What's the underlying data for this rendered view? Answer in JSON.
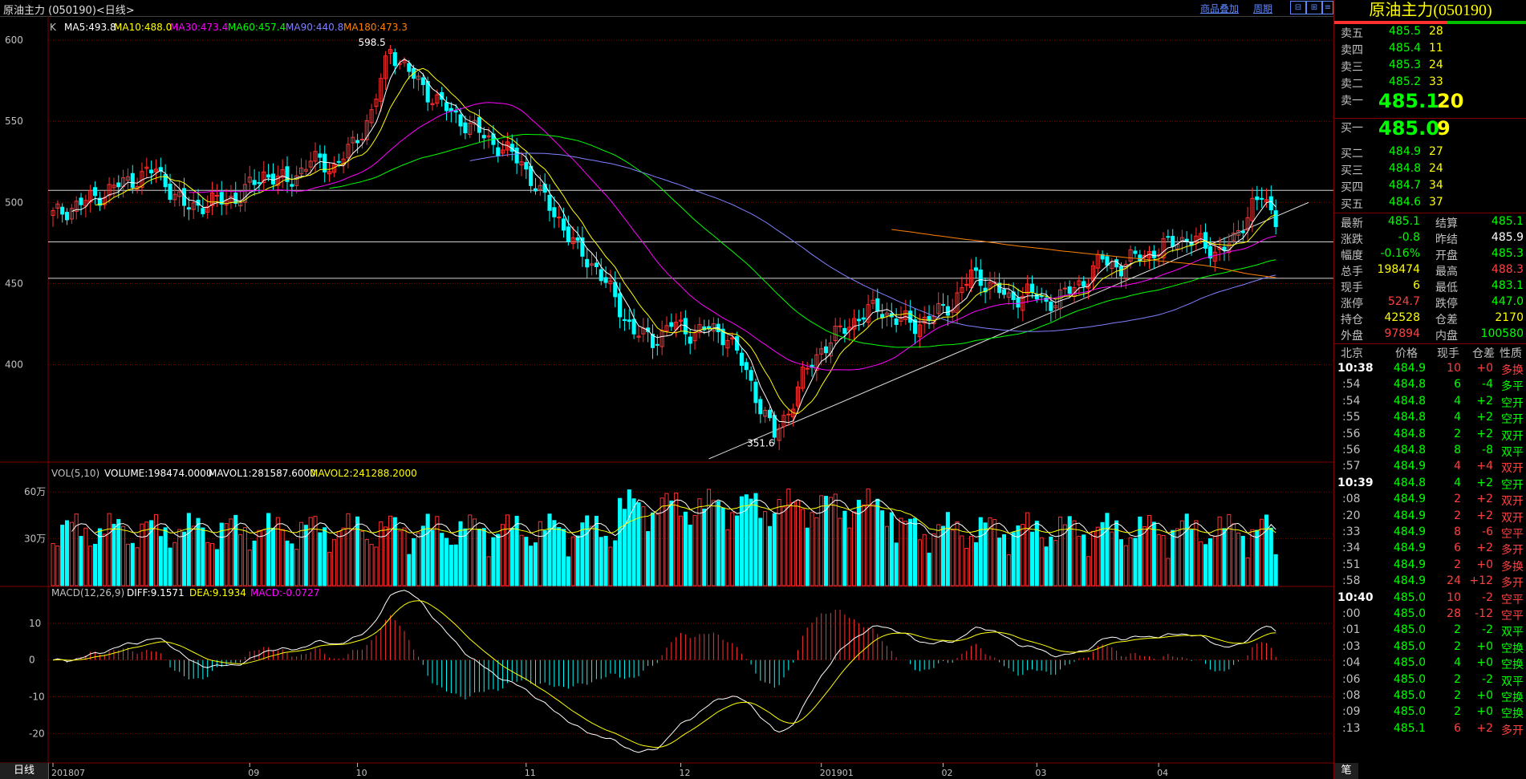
{
  "header": {
    "title": "原油主力 (050190)<日线>",
    "link_overlay": "商品叠加",
    "link_period": "周期"
  },
  "panels": {
    "price_legend": {
      "prefix": "K",
      "ma5": "MA5:493.8",
      "ma10": "MA10:488.0",
      "ma30": "MA30:473.4",
      "ma60": "MA60:457.4",
      "ma90": "MA90:440.8",
      "ma180": "MA180:473.3"
    },
    "vol_legend": {
      "prefix": "VOL(5,10)",
      "volume": "VOLUME:198474.0000",
      "mavol1": "MAVOL1:281587.6000",
      "mavol2": "MAVOL2:241288.2000"
    },
    "macd_legend": {
      "prefix": "MACD(12,26,9)",
      "diff": "DIFF:9.1571",
      "dea": "DEA:9.1934",
      "macd": "MACD:-0.0727"
    },
    "bottom_tab": "日线"
  },
  "chart_data": {
    "type": "candlestick",
    "price_axis": {
      "ticks": [
        600,
        550,
        500,
        450,
        400
      ],
      "ylim": [
        340,
        605
      ]
    },
    "vol_axis": {
      "ticks": [
        "60万",
        "30万"
      ],
      "tick_values": [
        600000,
        300000
      ],
      "ylim": [
        0,
        740000
      ]
    },
    "macd_axis": {
      "ticks": [
        10,
        0,
        -10,
        -20
      ],
      "ylim": [
        -28,
        20
      ]
    },
    "x_ticks": [
      {
        "label": "201807",
        "i": 0
      },
      {
        "label": "09",
        "i": 42
      },
      {
        "label": "10",
        "i": 65
      },
      {
        "label": "11",
        "i": 101
      },
      {
        "label": "12",
        "i": 134
      },
      {
        "label": "201901",
        "i": 164
      },
      {
        "label": "02",
        "i": 190
      },
      {
        "label": "03",
        "i": 210
      },
      {
        "label": "04",
        "i": 236
      }
    ],
    "annotations": [
      {
        "text": "598.5",
        "i": 72,
        "value": 598.5
      },
      {
        "text": "351.6",
        "i": 155,
        "value": 351.6
      }
    ],
    "horizontal_lines": [
      507.5,
      475.7,
      453.3
    ],
    "trendline": [
      [
        140,
        342
      ],
      [
        268,
        500
      ]
    ],
    "key_points": [
      {
        "i": 0,
        "close": 492
      },
      {
        "i": 8,
        "close": 502
      },
      {
        "i": 15,
        "close": 512
      },
      {
        "i": 22,
        "close": 520
      },
      {
        "i": 28,
        "close": 497
      },
      {
        "i": 34,
        "close": 500
      },
      {
        "i": 40,
        "close": 504
      },
      {
        "i": 45,
        "close": 518
      },
      {
        "i": 50,
        "close": 512
      },
      {
        "i": 55,
        "close": 526
      },
      {
        "i": 60,
        "close": 522
      },
      {
        "i": 64,
        "close": 535
      },
      {
        "i": 68,
        "close": 555
      },
      {
        "i": 72,
        "close": 595
      },
      {
        "i": 76,
        "close": 580
      },
      {
        "i": 80,
        "close": 568
      },
      {
        "i": 85,
        "close": 555
      },
      {
        "i": 90,
        "close": 545
      },
      {
        "i": 95,
        "close": 535
      },
      {
        "i": 100,
        "close": 525
      },
      {
        "i": 104,
        "close": 505
      },
      {
        "i": 108,
        "close": 490
      },
      {
        "i": 112,
        "close": 470
      },
      {
        "i": 116,
        "close": 460
      },
      {
        "i": 120,
        "close": 440
      },
      {
        "i": 124,
        "close": 420
      },
      {
        "i": 128,
        "close": 415
      },
      {
        "i": 132,
        "close": 425
      },
      {
        "i": 136,
        "close": 420
      },
      {
        "i": 140,
        "close": 422
      },
      {
        "i": 144,
        "close": 418
      },
      {
        "i": 148,
        "close": 395
      },
      {
        "i": 151,
        "close": 375
      },
      {
        "i": 154,
        "close": 356
      },
      {
        "i": 157,
        "close": 372
      },
      {
        "i": 160,
        "close": 392
      },
      {
        "i": 164,
        "close": 410
      },
      {
        "i": 168,
        "close": 420
      },
      {
        "i": 172,
        "close": 430
      },
      {
        "i": 176,
        "close": 435
      },
      {
        "i": 180,
        "close": 428
      },
      {
        "i": 184,
        "close": 425
      },
      {
        "i": 188,
        "close": 430
      },
      {
        "i": 192,
        "close": 438
      },
      {
        "i": 196,
        "close": 455
      },
      {
        "i": 200,
        "close": 450
      },
      {
        "i": 204,
        "close": 440
      },
      {
        "i": 208,
        "close": 445
      },
      {
        "i": 212,
        "close": 438
      },
      {
        "i": 216,
        "close": 443
      },
      {
        "i": 220,
        "close": 452
      },
      {
        "i": 224,
        "close": 465
      },
      {
        "i": 228,
        "close": 460
      },
      {
        "i": 232,
        "close": 468
      },
      {
        "i": 236,
        "close": 470
      },
      {
        "i": 240,
        "close": 478
      },
      {
        "i": 244,
        "close": 476
      },
      {
        "i": 248,
        "close": 470
      },
      {
        "i": 252,
        "close": 475
      },
      {
        "i": 256,
        "close": 500
      },
      {
        "i": 258,
        "close": 503
      },
      {
        "i": 260,
        "close": 492
      },
      {
        "i": 261,
        "close": 485.1
      }
    ],
    "ma_series": [
      {
        "name": "MA5",
        "color": "#ffffff",
        "values": []
      },
      {
        "name": "MA10",
        "color": "#ffff00",
        "values": []
      },
      {
        "name": "MA30",
        "color": "#ff00ff",
        "values": []
      },
      {
        "name": "MA60",
        "color": "#00ff00",
        "values": []
      },
      {
        "name": "MA90",
        "color": "#8080ff",
        "values": []
      },
      {
        "name": "MA180",
        "color": "#ff8000",
        "values": []
      }
    ]
  },
  "quote": {
    "title": "原油主力(050190)",
    "asks": [
      {
        "label": "卖五",
        "price": "485.5",
        "vol": "28"
      },
      {
        "label": "卖四",
        "price": "485.4",
        "vol": "11"
      },
      {
        "label": "卖三",
        "price": "485.3",
        "vol": "24"
      },
      {
        "label": "卖二",
        "price": "485.2",
        "vol": "33"
      },
      {
        "label": "卖一",
        "price": "485.1",
        "vol": "20"
      }
    ],
    "bids": [
      {
        "label": "买一",
        "price": "485.0",
        "vol": "9"
      },
      {
        "label": "买二",
        "price": "484.9",
        "vol": "27"
      },
      {
        "label": "买三",
        "price": "484.8",
        "vol": "24"
      },
      {
        "label": "买四",
        "price": "484.7",
        "vol": "34"
      },
      {
        "label": "买五",
        "price": "484.6",
        "vol": "37"
      }
    ],
    "stats": [
      {
        "l1": "最新",
        "v1": "485.1",
        "c1": "g",
        "l2": "结算",
        "v2": "485.1",
        "c2": "g"
      },
      {
        "l1": "涨跌",
        "v1": "-0.8",
        "c1": "g",
        "l2": "昨结",
        "v2": "485.9",
        "c2": "w"
      },
      {
        "l1": "幅度",
        "v1": "-0.16%",
        "c1": "g",
        "l2": "开盘",
        "v2": "485.3",
        "c2": "g"
      },
      {
        "l1": "总手",
        "v1": "198474",
        "c1": "y",
        "l2": "最高",
        "v2": "488.3",
        "c2": "r"
      },
      {
        "l1": "现手",
        "v1": "6",
        "c1": "y",
        "l2": "最低",
        "v2": "483.1",
        "c2": "g"
      },
      {
        "l1": "涨停",
        "v1": "524.7",
        "c1": "r",
        "l2": "跌停",
        "v2": "447.0",
        "c2": "g"
      },
      {
        "l1": "持仓",
        "v1": "42528",
        "c1": "y",
        "l2": "仓差",
        "v2": "2170",
        "c2": "y"
      },
      {
        "l1": "外盘",
        "v1": "97894",
        "c1": "r",
        "l2": "内盘",
        "v2": "100580",
        "c2": "g"
      }
    ],
    "ticks_header": {
      "time": "北京",
      "price": "价格",
      "vol": "现手",
      "oi": "仓差",
      "nature": "性质"
    },
    "ticks": [
      {
        "time": "10:38",
        "price": "484.9",
        "vol": "10",
        "oi": "+0",
        "nature": "多换",
        "bold": true,
        "pc": "g",
        "vc": "r",
        "nc": "r"
      },
      {
        "time": ":54",
        "price": "484.8",
        "vol": "6",
        "oi": "-4",
        "nature": "多平",
        "pc": "g",
        "vc": "g",
        "nc": "g"
      },
      {
        "time": ":54",
        "price": "484.8",
        "vol": "4",
        "oi": "+2",
        "nature": "空开",
        "pc": "g",
        "vc": "g",
        "nc": "g"
      },
      {
        "time": ":55",
        "price": "484.8",
        "vol": "4",
        "oi": "+2",
        "nature": "空开",
        "pc": "g",
        "vc": "g",
        "nc": "g"
      },
      {
        "time": ":56",
        "price": "484.8",
        "vol": "2",
        "oi": "+2",
        "nature": "双开",
        "pc": "g",
        "vc": "g",
        "nc": "g"
      },
      {
        "time": ":56",
        "price": "484.8",
        "vol": "8",
        "oi": "-8",
        "nature": "双平",
        "pc": "g",
        "vc": "g",
        "nc": "g"
      },
      {
        "time": ":57",
        "price": "484.9",
        "vol": "4",
        "oi": "+4",
        "nature": "双开",
        "pc": "g",
        "vc": "r",
        "nc": "r"
      },
      {
        "time": "10:39",
        "price": "484.8",
        "vol": "4",
        "oi": "+2",
        "nature": "空开",
        "bold": true,
        "pc": "g",
        "vc": "g",
        "nc": "g"
      },
      {
        "time": ":08",
        "price": "484.9",
        "vol": "2",
        "oi": "+2",
        "nature": "双开",
        "pc": "g",
        "vc": "r",
        "nc": "r"
      },
      {
        "time": ":20",
        "price": "484.9",
        "vol": "2",
        "oi": "+2",
        "nature": "双开",
        "pc": "g",
        "vc": "r",
        "nc": "r"
      },
      {
        "time": ":33",
        "price": "484.9",
        "vol": "8",
        "oi": "-6",
        "nature": "空平",
        "pc": "g",
        "vc": "r",
        "nc": "r"
      },
      {
        "time": ":34",
        "price": "484.9",
        "vol": "6",
        "oi": "+2",
        "nature": "多开",
        "pc": "g",
        "vc": "r",
        "nc": "r"
      },
      {
        "time": ":51",
        "price": "484.9",
        "vol": "2",
        "oi": "+0",
        "nature": "多换",
        "pc": "g",
        "vc": "r",
        "nc": "r"
      },
      {
        "time": ":58",
        "price": "484.9",
        "vol": "24",
        "oi": "+12",
        "nature": "多开",
        "pc": "g",
        "vc": "r",
        "nc": "r"
      },
      {
        "time": "10:40",
        "price": "485.0",
        "vol": "10",
        "oi": "-2",
        "nature": "空平",
        "bold": true,
        "pc": "g",
        "vc": "r",
        "nc": "r"
      },
      {
        "time": ":00",
        "price": "485.0",
        "vol": "28",
        "oi": "-12",
        "nature": "空平",
        "pc": "g",
        "vc": "r",
        "nc": "r"
      },
      {
        "time": ":01",
        "price": "485.0",
        "vol": "2",
        "oi": "-2",
        "nature": "双平",
        "pc": "g",
        "vc": "g",
        "nc": "g"
      },
      {
        "time": ":03",
        "price": "485.0",
        "vol": "2",
        "oi": "+0",
        "nature": "空换",
        "pc": "g",
        "vc": "g",
        "nc": "g"
      },
      {
        "time": ":04",
        "price": "485.0",
        "vol": "4",
        "oi": "+0",
        "nature": "空换",
        "pc": "g",
        "vc": "g",
        "nc": "g"
      },
      {
        "time": ":06",
        "price": "485.0",
        "vol": "2",
        "oi": "-2",
        "nature": "双平",
        "pc": "g",
        "vc": "g",
        "nc": "g"
      },
      {
        "time": ":08",
        "price": "485.0",
        "vol": "2",
        "oi": "+0",
        "nature": "空换",
        "pc": "g",
        "vc": "g",
        "nc": "g"
      },
      {
        "time": ":09",
        "price": "485.0",
        "vol": "2",
        "oi": "+0",
        "nature": "空换",
        "pc": "g",
        "vc": "g",
        "nc": "g"
      },
      {
        "time": ":13",
        "price": "485.1",
        "vol": "6",
        "oi": "+2",
        "nature": "多开",
        "pc": "g",
        "vc": "r",
        "nc": "r"
      }
    ],
    "bottom_tab": "笔"
  },
  "colors": {
    "up": "#ff3030",
    "down": "#00ffff",
    "grid": "#800000"
  }
}
